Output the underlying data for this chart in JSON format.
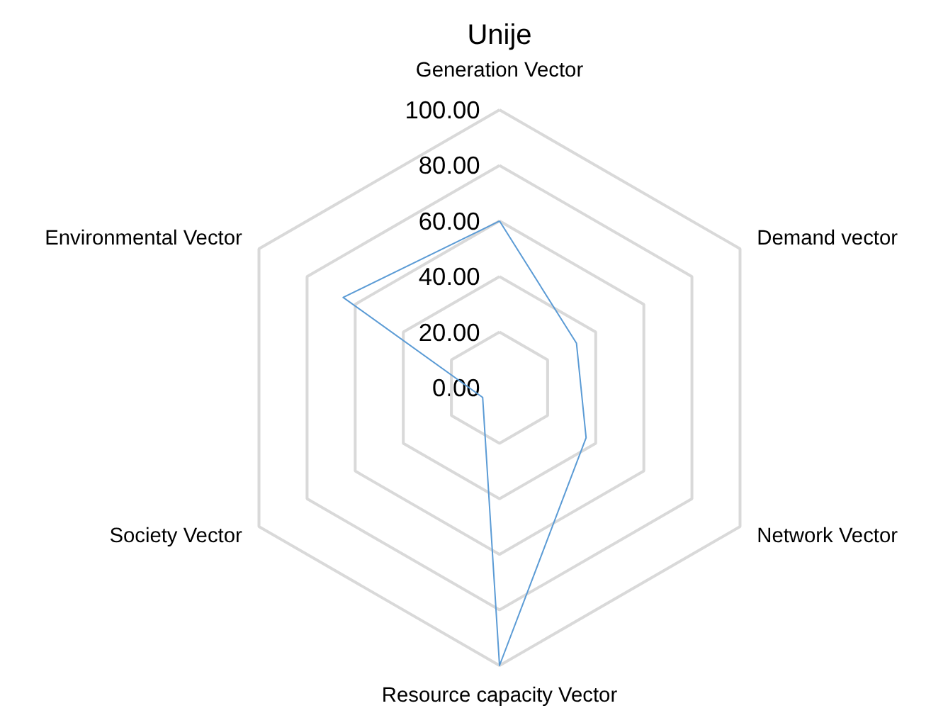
{
  "chart_data": {
    "type": "radar",
    "title": "Unije",
    "categories": [
      "Generation Vector",
      "Demand vector",
      "Network Vector",
      "Resource capacity Vector",
      "Society Vector",
      "Environmental Vector"
    ],
    "series": [
      {
        "color": "#5b9bd5",
        "values": [
          60,
          32,
          36,
          100,
          7,
          65
        ]
      }
    ],
    "ylim": [
      0,
      100
    ],
    "yticks": [
      {
        "value": 0,
        "label": "0.00"
      },
      {
        "value": 20,
        "label": "20.00"
      },
      {
        "value": 40,
        "label": "40.00"
      },
      {
        "value": 60,
        "label": "60.00"
      },
      {
        "value": 80,
        "label": "80.00"
      },
      {
        "value": 100,
        "label": "100.00"
      }
    ],
    "grid": true
  }
}
